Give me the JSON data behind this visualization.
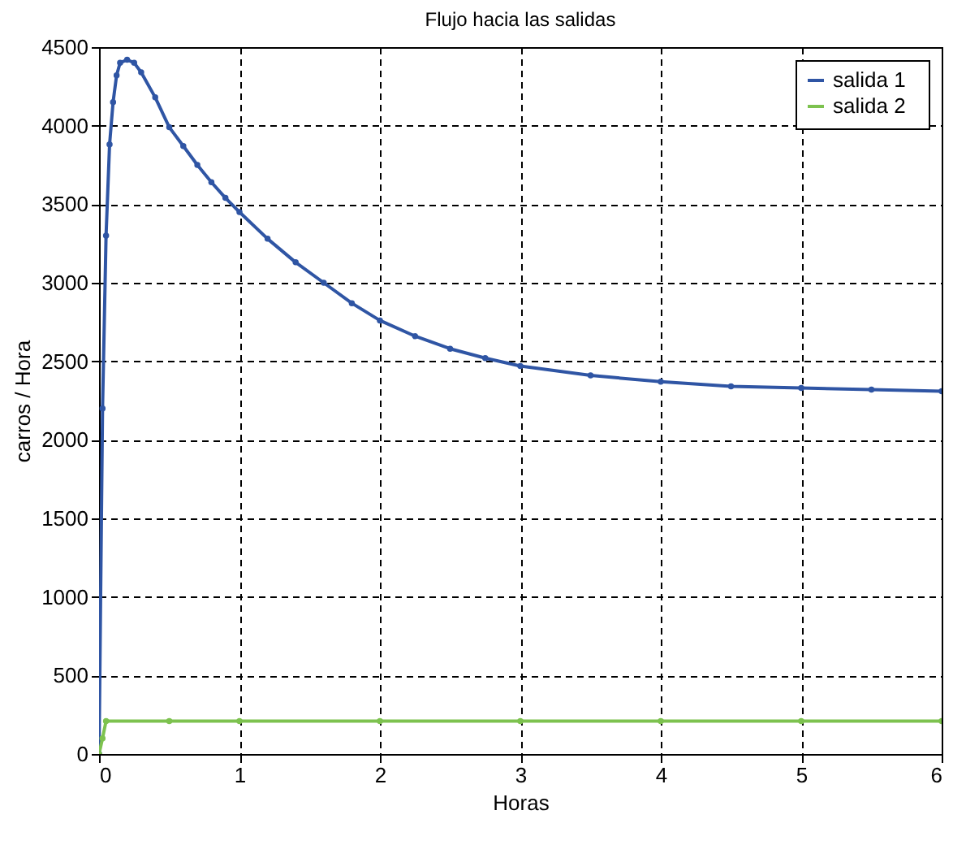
{
  "chart_data": {
    "type": "line",
    "title": "Flujo hacia las salidas",
    "xlabel": "Horas",
    "ylabel": "carros / Hora",
    "xlim": [
      0,
      6
    ],
    "xticks": [
      0,
      1,
      2,
      3,
      4,
      5,
      6
    ],
    "ylim": [
      0,
      4500
    ],
    "yticks": [
      0,
      500,
      1000,
      1500,
      2000,
      2500,
      3000,
      3500,
      4000,
      4500
    ],
    "grid": true,
    "legend": "top right",
    "marker": "circle",
    "line_style": "solid",
    "series": [
      {
        "name": "salida   1",
        "color": "#2f55a4",
        "x": [
          0,
          0.025,
          0.05,
          0.075,
          0.1,
          0.125,
          0.15,
          0.2,
          0.25,
          0.3,
          0.4,
          0.5,
          0.6,
          0.7,
          0.8,
          0.9,
          1,
          1.2,
          1.4,
          1.6,
          1.8,
          2,
          2.25,
          2.5,
          2.75,
          3,
          3.5,
          4,
          4.5,
          5,
          5.5,
          6
        ],
        "values": [
          0,
          2200,
          3300,
          3880,
          4150,
          4320,
          4400,
          4420,
          4400,
          4340,
          4180,
          3990,
          3870,
          3750,
          3640,
          3540,
          3450,
          3280,
          3130,
          3000,
          2870,
          2760,
          2660,
          2580,
          2520,
          2470,
          2410,
          2370,
          2340,
          2330,
          2320,
          2310
        ]
      },
      {
        "name": "salida   2",
        "color": "#7dc24f",
        "x": [
          0,
          0.025,
          0.05,
          0.5,
          1,
          2,
          3,
          4,
          5,
          6
        ],
        "values": [
          0,
          100,
          210,
          210,
          210,
          210,
          210,
          210,
          210,
          210
        ]
      }
    ]
  }
}
